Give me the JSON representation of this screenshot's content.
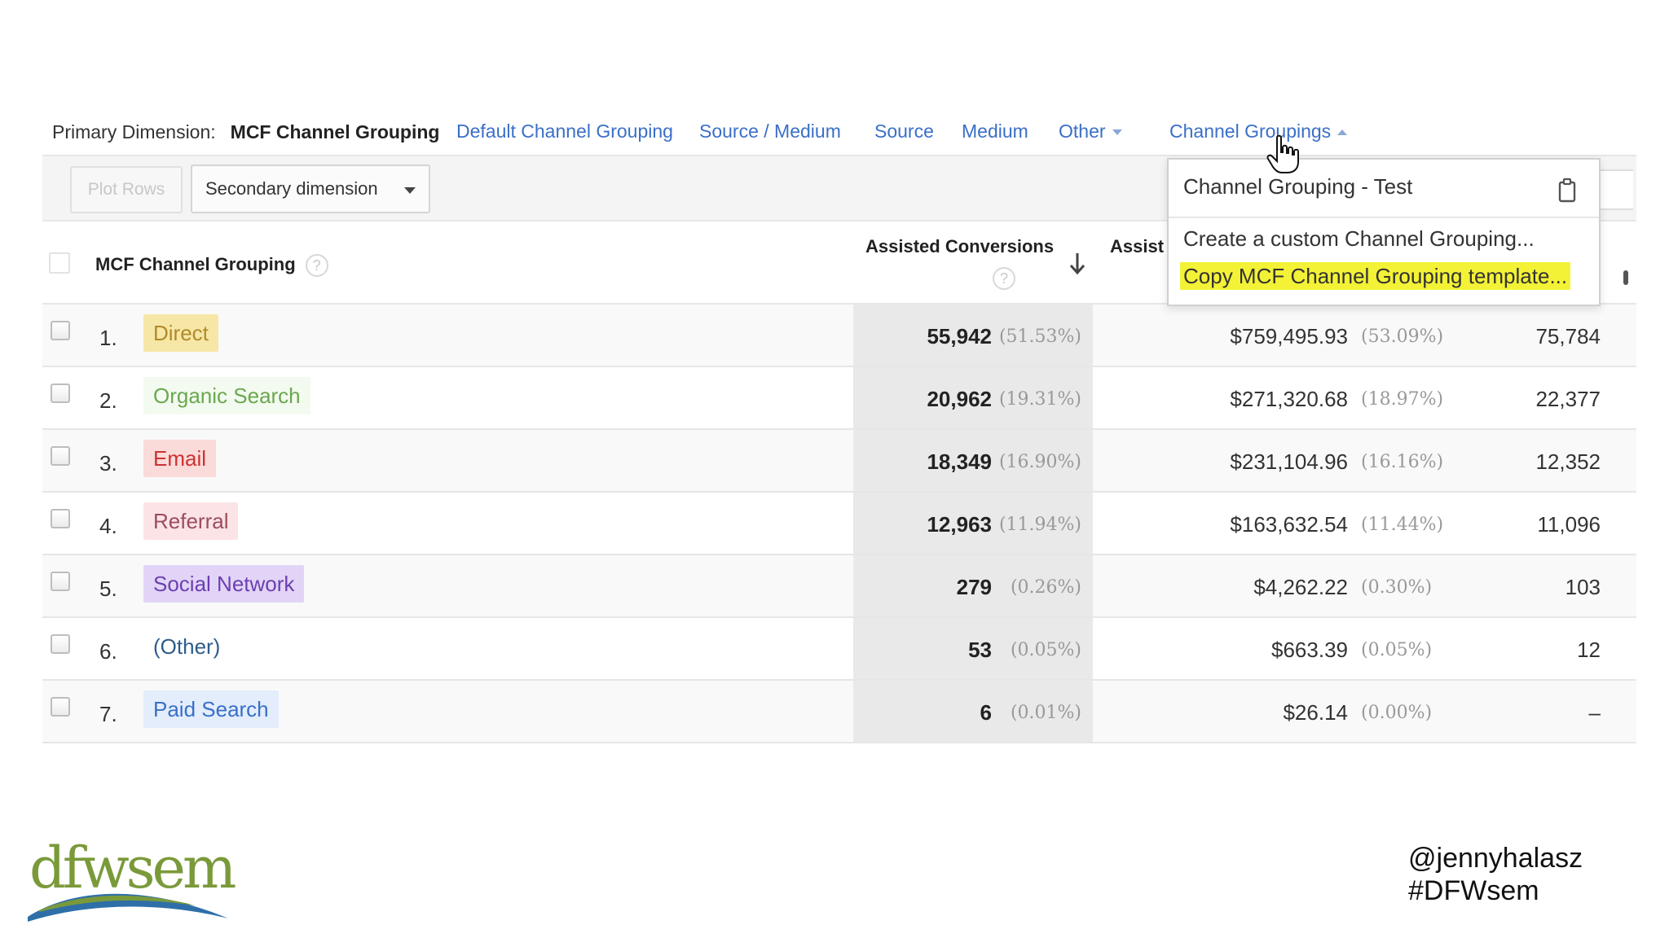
{
  "dimension_bar": {
    "label": "Primary Dimension:",
    "current": "MCF Channel Grouping",
    "options": [
      {
        "label": "Default Channel Grouping"
      },
      {
        "label": "Source / Medium"
      },
      {
        "label": "Source"
      },
      {
        "label": "Medium"
      },
      {
        "label": "Other"
      },
      {
        "label": "Channel Groupings"
      }
    ]
  },
  "toolbar": {
    "plot_rows": "Plot Rows",
    "secondary_dimension": "Secondary dimension"
  },
  "table": {
    "headers": {
      "dimension": "MCF Channel Grouping",
      "assisted_conversions": "Assisted Conversions",
      "assisted_value_truncated": "Assist",
      "help": "?"
    },
    "rows": [
      {
        "num": "1.",
        "channel": "Direct",
        "assisted_conversions": "55,942",
        "ac_pct": "(51.53%)",
        "assisted_value": "$759,495.93",
        "av_pct": "(53.09%)",
        "last": "75,784"
      },
      {
        "num": "2.",
        "channel": "Organic Search",
        "assisted_conversions": "20,962",
        "ac_pct": "(19.31%)",
        "assisted_value": "$271,320.68",
        "av_pct": "(18.97%)",
        "last": "22,377"
      },
      {
        "num": "3.",
        "channel": "Email",
        "assisted_conversions": "18,349",
        "ac_pct": "(16.90%)",
        "assisted_value": "$231,104.96",
        "av_pct": "(16.16%)",
        "last": "12,352"
      },
      {
        "num": "4.",
        "channel": "Referral",
        "assisted_conversions": "12,963",
        "ac_pct": "(11.94%)",
        "assisted_value": "$163,632.54",
        "av_pct": "(11.44%)",
        "last": "11,096"
      },
      {
        "num": "5.",
        "channel": "Social Network",
        "assisted_conversions": "279",
        "ac_pct": "(0.26%)",
        "assisted_value": "$4,262.22",
        "av_pct": "(0.30%)",
        "last": "103"
      },
      {
        "num": "6.",
        "channel": "(Other)",
        "assisted_conversions": "53",
        "ac_pct": "(0.05%)",
        "assisted_value": "$663.39",
        "av_pct": "(0.05%)",
        "last": "12"
      },
      {
        "num": "7.",
        "channel": "Paid Search",
        "assisted_conversions": "6",
        "ac_pct": "(0.01%)",
        "assisted_value": "$26.14",
        "av_pct": "(0.00%)",
        "last": "–"
      }
    ]
  },
  "channel_colors": {
    "Direct": {
      "bg": "#f7e7a6",
      "fg": "#b08a2a"
    },
    "Organic Search": {
      "bg": "#f3faef",
      "fg": "#6aa84f"
    },
    "Email": {
      "bg": "#fbdada",
      "fg": "#cc3333"
    },
    "Referral": {
      "bg": "#fbe3e6",
      "fg": "#9c4d5c"
    },
    "Social Network": {
      "bg": "#e2d4f7",
      "fg": "#6b3fb0"
    },
    "(Other)": {
      "bg": "transparent",
      "fg": "#2d5d8a"
    },
    "Paid Search": {
      "bg": "#e3edfb",
      "fg": "#3a6fc8"
    }
  },
  "dropdown": {
    "items": [
      {
        "label": "Channel Grouping - Test"
      },
      {
        "label": "Create a custom Channel Grouping..."
      },
      {
        "label": "Copy MCF Channel Grouping template..."
      }
    ],
    "highlight_color": "#f3f236"
  },
  "footer": {
    "logo_text": "dfwsem",
    "handle": "@jennyhalasz",
    "hashtag": "#DFWsem"
  },
  "colors": {
    "link": "#3a6fc8",
    "logo_green": "#7a9a3a",
    "logo_blue": "#2e6fa8"
  }
}
